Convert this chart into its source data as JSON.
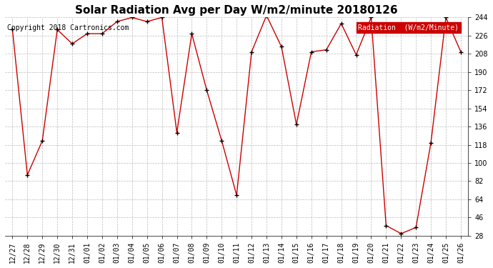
{
  "title": "Solar Radiation Avg per Day W/m2/minute 20180126",
  "copyright": "Copyright 2018 Cartronics.com",
  "legend_label": "Radiation  (W/m2/Minute)",
  "dates": [
    "12/27",
    "12/28",
    "12/29",
    "12/30",
    "12/31",
    "01/01",
    "01/02",
    "01/03",
    "01/04",
    "01/05",
    "01/06",
    "01/07",
    "01/08",
    "01/09",
    "01/10",
    "01/11",
    "01/12",
    "01/13",
    "01/14",
    "01/15",
    "01/16",
    "01/17",
    "01/18",
    "01/19",
    "01/20",
    "01/21",
    "01/22",
    "01/23",
    "01/24",
    "01/25",
    "01/26"
  ],
  "values": [
    232,
    88,
    122,
    232,
    218,
    228,
    228,
    240,
    244,
    240,
    244,
    130,
    228,
    172,
    122,
    68,
    210,
    246,
    215,
    138,
    210,
    212,
    238,
    207,
    244,
    38,
    30,
    36,
    120,
    244,
    210
  ],
  "line_color": "#cc0000",
  "marker_color": "#000000",
  "background_color": "#ffffff",
  "grid_color": "#bbbbbb",
  "legend_bg": "#cc0000",
  "legend_text_color": "#ffffff",
  "title_fontsize": 11,
  "copyright_fontsize": 7,
  "tick_fontsize": 7,
  "ylim_min": 28.0,
  "ylim_max": 244.0,
  "yticks": [
    28.0,
    46.0,
    64.0,
    82.0,
    100.0,
    118.0,
    136.0,
    154.0,
    172.0,
    190.0,
    208.0,
    226.0,
    244.0
  ]
}
